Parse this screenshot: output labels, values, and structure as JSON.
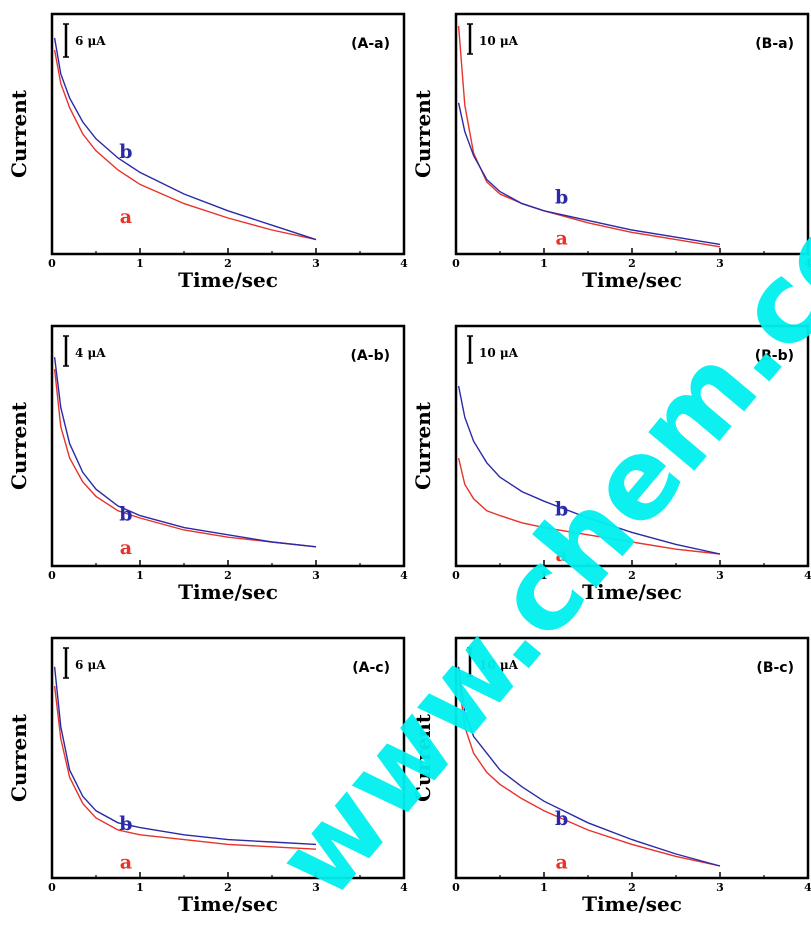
{
  "watermark": {
    "text": "www.chem.com.cn",
    "color": "#00f0f0"
  },
  "colors": {
    "a": "#e8322a",
    "b": "#2a2aa8"
  },
  "chart_data": [
    {
      "type": "line",
      "panel_label": "(A-a)",
      "scale_bar_label": "6 μA",
      "xlabel": "Time/sec",
      "ylabel": "Current",
      "xlim": [
        0,
        4
      ],
      "ylim": [
        0,
        100
      ],
      "xticks": [
        "0",
        "1",
        "2",
        "3",
        "4"
      ],
      "series": [
        {
          "name": "a",
          "color": "#e8322a",
          "x": [
            0.03,
            0.1,
            0.2,
            0.35,
            0.5,
            0.75,
            1.0,
            1.5,
            2.0,
            2.5,
            3.0
          ],
          "y": [
            85,
            71,
            61,
            50,
            43,
            35,
            29,
            21,
            15,
            10,
            6
          ]
        },
        {
          "name": "b",
          "color": "#2a2aa8",
          "x": [
            0.03,
            0.1,
            0.2,
            0.35,
            0.5,
            0.75,
            1.0,
            1.5,
            2.0,
            2.5,
            3.0
          ],
          "y": [
            90,
            75,
            65,
            55,
            48,
            40,
            34,
            25,
            18,
            12,
            6
          ]
        }
      ]
    },
    {
      "type": "line",
      "panel_label": "(B-a)",
      "scale_bar_label": "10 μA",
      "xlabel": "Time/sec",
      "ylabel": "Current",
      "xlim": [
        0,
        4
      ],
      "ylim": [
        0,
        100
      ],
      "xticks": [
        "0",
        "1",
        "2",
        "3",
        "4"
      ],
      "series": [
        {
          "name": "a",
          "color": "#e8322a",
          "x": [
            0.03,
            0.1,
            0.2,
            0.35,
            0.5,
            0.75,
            1.0,
            1.5,
            2.0,
            2.5,
            3.0
          ],
          "y": [
            95,
            62,
            42,
            30,
            25,
            21,
            18,
            13,
            9,
            6,
            3
          ]
        },
        {
          "name": "b",
          "color": "#2a2aa8",
          "x": [
            0.03,
            0.1,
            0.2,
            0.35,
            0.5,
            0.75,
            1.0,
            1.5,
            2.0,
            2.5,
            3.0
          ],
          "y": [
            63,
            51,
            41,
            31,
            26,
            21,
            18,
            14,
            10,
            7,
            4
          ]
        }
      ]
    },
    {
      "type": "line",
      "panel_label": "(A-b)",
      "scale_bar_label": "4 μA",
      "xlabel": "Time/sec",
      "ylabel": "Current",
      "xlim": [
        0,
        4
      ],
      "ylim": [
        0,
        100
      ],
      "xticks": [
        "0",
        "1",
        "2",
        "3",
        "4"
      ],
      "series": [
        {
          "name": "a",
          "color": "#e8322a",
          "x": [
            0.03,
            0.1,
            0.2,
            0.35,
            0.5,
            0.75,
            1.0,
            1.5,
            2.0,
            2.5,
            3.0
          ],
          "y": [
            82,
            58,
            45,
            35,
            29,
            23,
            20,
            15,
            12,
            10,
            8
          ]
        },
        {
          "name": "b",
          "color": "#2a2aa8",
          "x": [
            0.03,
            0.1,
            0.2,
            0.35,
            0.5,
            0.75,
            1.0,
            1.5,
            2.0,
            2.5,
            3.0
          ],
          "y": [
            87,
            66,
            51,
            39,
            32,
            25,
            21,
            16,
            13,
            10,
            8
          ]
        }
      ]
    },
    {
      "type": "line",
      "panel_label": "(B-b)",
      "scale_bar_label": "10 μA",
      "xlabel": "Time/sec",
      "ylabel": "Current",
      "xlim": [
        0,
        4
      ],
      "ylim": [
        0,
        100
      ],
      "xticks": [
        "0",
        "1",
        "2",
        "3",
        "4"
      ],
      "series": [
        {
          "name": "a",
          "color": "#e8322a",
          "x": [
            0.03,
            0.1,
            0.2,
            0.35,
            0.5,
            0.75,
            1.0,
            1.5,
            2.0,
            2.5,
            3.0
          ],
          "y": [
            45,
            34,
            28,
            23,
            21,
            18,
            16,
            13,
            10,
            7,
            5
          ]
        },
        {
          "name": "b",
          "color": "#2a2aa8",
          "x": [
            0.03,
            0.1,
            0.2,
            0.35,
            0.5,
            0.75,
            1.0,
            1.5,
            2.0,
            2.5,
            3.0
          ],
          "y": [
            75,
            62,
            52,
            43,
            37,
            31,
            27,
            20,
            14,
            9,
            5
          ]
        }
      ]
    },
    {
      "type": "line",
      "panel_label": "(A-c)",
      "scale_bar_label": "6 μA",
      "xlabel": "Time/sec",
      "ylabel": "Current",
      "xlim": [
        0,
        4
      ],
      "ylim": [
        0,
        100
      ],
      "xticks": [
        "0",
        "1",
        "2",
        "3",
        "4"
      ],
      "series": [
        {
          "name": "a",
          "color": "#e8322a",
          "x": [
            0.03,
            0.1,
            0.2,
            0.35,
            0.5,
            0.75,
            1.0,
            1.5,
            2.0,
            2.5,
            3.0
          ],
          "y": [
            80,
            58,
            42,
            31,
            25,
            20,
            18,
            16,
            14,
            13,
            12
          ]
        },
        {
          "name": "b",
          "color": "#2a2aa8",
          "x": [
            0.03,
            0.1,
            0.2,
            0.35,
            0.5,
            0.75,
            1.0,
            1.5,
            2.0,
            2.5,
            3.0
          ],
          "y": [
            88,
            63,
            45,
            34,
            28,
            23,
            21,
            18,
            16,
            15,
            14
          ]
        }
      ]
    },
    {
      "type": "line",
      "panel_label": "(B-c)",
      "scale_bar_label": "10 μA",
      "xlabel": "Time/sec",
      "ylabel": "Current",
      "xlim": [
        0,
        4
      ],
      "ylim": [
        0,
        100
      ],
      "xticks": [
        "0",
        "1",
        "2",
        "3",
        "4"
      ],
      "series": [
        {
          "name": "a",
          "color": "#e8322a",
          "x": [
            0.03,
            0.1,
            0.2,
            0.35,
            0.5,
            0.75,
            1.0,
            1.5,
            2.0,
            2.5,
            3.0
          ],
          "y": [
            83,
            63,
            52,
            44,
            39,
            33,
            28,
            20,
            14,
            9,
            5
          ]
        },
        {
          "name": "b",
          "color": "#2a2aa8",
          "x": [
            0.03,
            0.1,
            0.2,
            0.35,
            0.5,
            0.75,
            1.0,
            1.5,
            2.0,
            2.5,
            3.0
          ],
          "y": [
            88,
            69,
            59,
            52,
            45,
            38,
            32,
            23,
            16,
            10,
            5
          ]
        }
      ]
    }
  ]
}
